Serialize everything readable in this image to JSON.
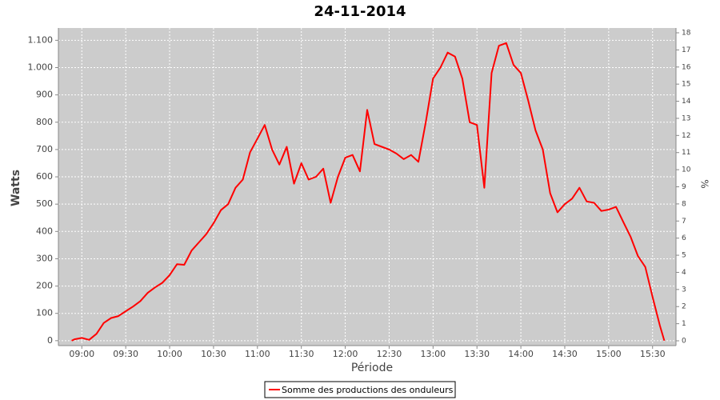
{
  "chart_data": {
    "type": "line",
    "title": "24-11-2014",
    "x_label": "Période",
    "y_label": "Watts",
    "y2_label": "%",
    "x": [
      "08:53",
      "08:55",
      "09:00",
      "09:05",
      "09:10",
      "09:15",
      "09:20",
      "09:25",
      "09:30",
      "09:35",
      "09:40",
      "09:45",
      "09:50",
      "09:55",
      "10:00",
      "10:05",
      "10:10",
      "10:15",
      "10:20",
      "10:25",
      "10:30",
      "10:35",
      "10:40",
      "10:45",
      "10:50",
      "10:55",
      "11:00",
      "11:05",
      "11:10",
      "11:15",
      "11:20",
      "11:25",
      "11:30",
      "11:35",
      "11:40",
      "11:45",
      "11:50",
      "11:55",
      "12:00",
      "12:05",
      "12:10",
      "12:15",
      "12:20",
      "12:25",
      "12:30",
      "12:35",
      "12:40",
      "12:45",
      "12:50",
      "12:55",
      "13:00",
      "13:05",
      "13:10",
      "13:15",
      "13:20",
      "13:25",
      "13:30",
      "13:35",
      "13:40",
      "13:45",
      "13:50",
      "13:55",
      "14:00",
      "14:05",
      "14:10",
      "14:15",
      "14:20",
      "14:25",
      "14:30",
      "14:35",
      "14:40",
      "14:45",
      "14:50",
      "14:55",
      "15:00",
      "15:05",
      "15:10",
      "15:15",
      "15:20",
      "15:25",
      "15:30",
      "15:35",
      "15:38"
    ],
    "series": [
      {
        "name": "Somme des productions des onduleurs",
        "color": "#ff0000",
        "values": [
          0,
          5,
          10,
          3,
          25,
          65,
          83,
          90,
          108,
          125,
          145,
          175,
          195,
          212,
          240,
          280,
          278,
          330,
          360,
          390,
          430,
          478,
          500,
          560,
          590,
          690,
          740,
          790,
          700,
          645,
          710,
          575,
          650,
          590,
          600,
          630,
          505,
          600,
          670,
          680,
          620,
          845,
          720,
          710,
          700,
          685,
          665,
          680,
          655,
          800,
          960,
          1000,
          1055,
          1040,
          960,
          800,
          790,
          560,
          980,
          1080,
          1090,
          1010,
          980,
          880,
          770,
          700,
          540,
          470,
          500,
          520,
          560,
          510,
          505,
          475,
          480,
          490,
          435,
          380,
          310,
          270,
          160,
          55,
          0
        ]
      }
    ],
    "xlim": [
      "08:44",
      "15:46"
    ],
    "xticks": [
      "09:00",
      "09:30",
      "10:00",
      "10:30",
      "11:00",
      "11:30",
      "12:00",
      "12:30",
      "13:00",
      "13:30",
      "14:00",
      "14:30",
      "15:00",
      "15:30"
    ],
    "ylim": [
      -18,
      1145
    ],
    "yticks": [
      0,
      100,
      200,
      300,
      400,
      500,
      600,
      700,
      800,
      900,
      {
        "value": 1000,
        "label": "1.000"
      },
      {
        "value": 1100,
        "label": "1.100"
      }
    ],
    "y2lim": [
      -0.28,
      18.28
    ],
    "y2ticks": [
      0,
      1,
      2,
      3,
      4,
      5,
      6,
      7,
      8,
      9,
      10,
      11,
      12,
      13,
      14,
      15,
      16,
      17,
      18
    ],
    "grid": true,
    "legend": "bottom",
    "plot_background": "#cccccc"
  }
}
